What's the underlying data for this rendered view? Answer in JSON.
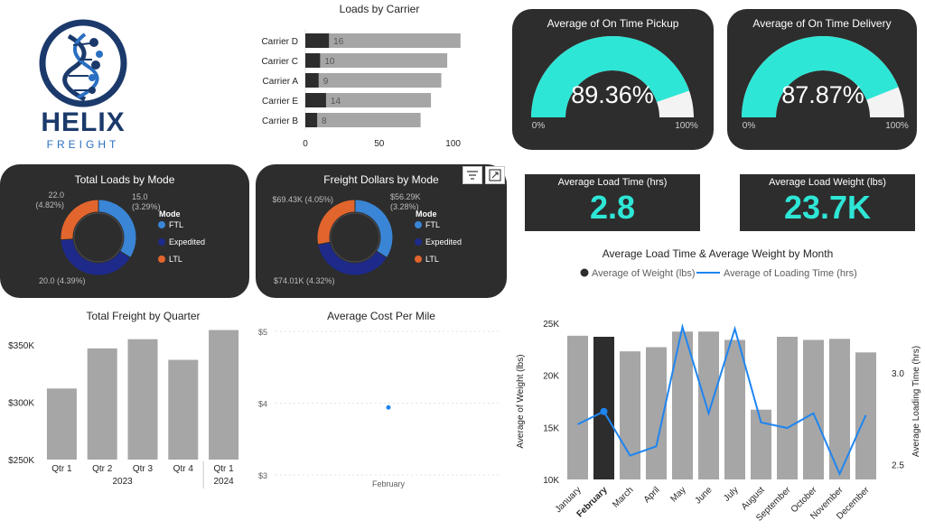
{
  "logo": {
    "brand": "HELIX",
    "sub": "FREIGHT"
  },
  "colors": {
    "teal": "#2ee6d6",
    "dark_card": "#2d2d2d",
    "bar_gray": "#a6a6a6",
    "bar_dark": "#2d2d2d",
    "line_blue": "#1f85f0",
    "ftl": "#3a85d6",
    "expedited": "#1e2a8a",
    "ltl": "#e2652d"
  },
  "icons": {
    "filter": "filter-icon",
    "expand": "expand-icon"
  },
  "loads_by_carrier": {
    "title": "Loads by Carrier",
    "chart_data": {
      "type": "bar",
      "orientation": "horizontal",
      "categories": [
        "Carrier D",
        "Carrier C",
        "Carrier A",
        "Carrier E",
        "Carrier B"
      ],
      "series": [
        {
          "values": [
            16,
            10,
            9,
            14,
            8
          ]
        },
        {
          "values": [
            105,
            96,
            92,
            85,
            78
          ]
        }
      ],
      "value_labels": [
        "16",
        "10",
        "9",
        "14",
        "8"
      ],
      "xlim": [
        0,
        110
      ],
      "xticks": [
        "0",
        "50",
        "100"
      ]
    }
  },
  "gauges": [
    {
      "title": "Average of On Time Pickup",
      "value_text": "89.36%",
      "value": 0.8936,
      "min_label": "0%",
      "max_label": "100%"
    },
    {
      "title": "Average of On Time Delivery",
      "value_text": "87.87%",
      "value": 0.8787,
      "min_label": "0%",
      "max_label": "100%"
    }
  ],
  "kpis": [
    {
      "title": "Average Load Time (hrs)",
      "value": "2.8"
    },
    {
      "title": "Average Load Weight (lbs)",
      "value": "23.7K"
    }
  ],
  "donuts": [
    {
      "title": "Total Loads by Mode",
      "legend_title": "Mode",
      "legend": [
        "FTL",
        "Expedited",
        "LTL"
      ],
      "chart_data": {
        "type": "pie",
        "categories": [
          "FTL",
          "Expedited",
          "LTL"
        ],
        "values": [
          0.34,
          0.4,
          0.26
        ]
      },
      "labels": [
        "15.0",
        "(3.29%)",
        "22.0",
        "(4.82%)",
        "20.0 (4.39%)"
      ]
    },
    {
      "title": "Freight Dollars by Mode",
      "legend_title": "Mode",
      "legend": [
        "FTL",
        "Expedited",
        "LTL"
      ],
      "chart_data": {
        "type": "pie",
        "categories": [
          "FTL",
          "Expedited",
          "LTL"
        ],
        "values": [
          0.34,
          0.38,
          0.28
        ]
      },
      "labels": [
        "$56.29K",
        "(3.28%)",
        "$69.43K (4.05%)",
        "$74.01K (4.32%)"
      ]
    }
  ],
  "quarter_chart": {
    "title": "Total Freight by Quarter",
    "chart_data": {
      "type": "bar",
      "categories": [
        "Qtr 1",
        "Qtr 2",
        "Qtr 3",
        "Qtr 4",
        "Qtr 1"
      ],
      "groups": [
        "2023",
        "2023",
        "2023",
        "2023",
        "2024"
      ],
      "values": [
        312000,
        347000,
        355000,
        337000,
        363000
      ],
      "ylim": [
        250000,
        365000
      ],
      "yticks": [
        {
          "v": 350000,
          "label": "$350K"
        },
        {
          "v": 300000,
          "label": "$300K"
        },
        {
          "v": 250000,
          "label": "$250K"
        }
      ]
    }
  },
  "cost_chart": {
    "title": "Average Cost Per Mile",
    "chart_data": {
      "type": "scatter",
      "x": [
        "February"
      ],
      "y": [
        3.94
      ],
      "ylim": [
        3,
        5
      ],
      "yticks": [
        {
          "v": 5,
          "label": "$5"
        },
        {
          "v": 4,
          "label": "$4"
        },
        {
          "v": 3,
          "label": "$3"
        }
      ]
    }
  },
  "combo_chart": {
    "title": "Average Load Time & Average Weight by Month",
    "legend": [
      "Average of Weight (lbs)",
      "Average of Loading Time (hrs)"
    ],
    "chart_data": {
      "type": "bar",
      "categories": [
        "January",
        "February",
        "March",
        "April",
        "May",
        "June",
        "July",
        "August",
        "September",
        "October",
        "November",
        "December"
      ],
      "highlighted": "February",
      "series": [
        {
          "name": "Average of Weight (lbs)",
          "axis": "left",
          "values": [
            23800,
            23700,
            22300,
            22700,
            24200,
            24200,
            23400,
            16700,
            23700,
            23400,
            23500,
            22200
          ]
        },
        {
          "name": "Average of Loading Time (hrs)",
          "axis": "right",
          "type": "line",
          "values": [
            2.72,
            2.79,
            2.55,
            2.6,
            3.25,
            2.78,
            3.24,
            2.73,
            2.7,
            2.78,
            2.45,
            2.77
          ]
        }
      ],
      "ylabel": "Average of Weight (lbs)",
      "y2label": "Average Loading Time (hrs)",
      "ylim": [
        10000,
        25000
      ],
      "y2lim": [
        2.42,
        3.27
      ],
      "yticks": [
        {
          "v": 25000,
          "label": "25K"
        },
        {
          "v": 20000,
          "label": "20K"
        },
        {
          "v": 15000,
          "label": "15K"
        },
        {
          "v": 10000,
          "label": "10K"
        }
      ],
      "y2ticks": [
        {
          "v": 3.0,
          "label": "3.0"
        },
        {
          "v": 2.5,
          "label": "2.5"
        }
      ]
    }
  }
}
